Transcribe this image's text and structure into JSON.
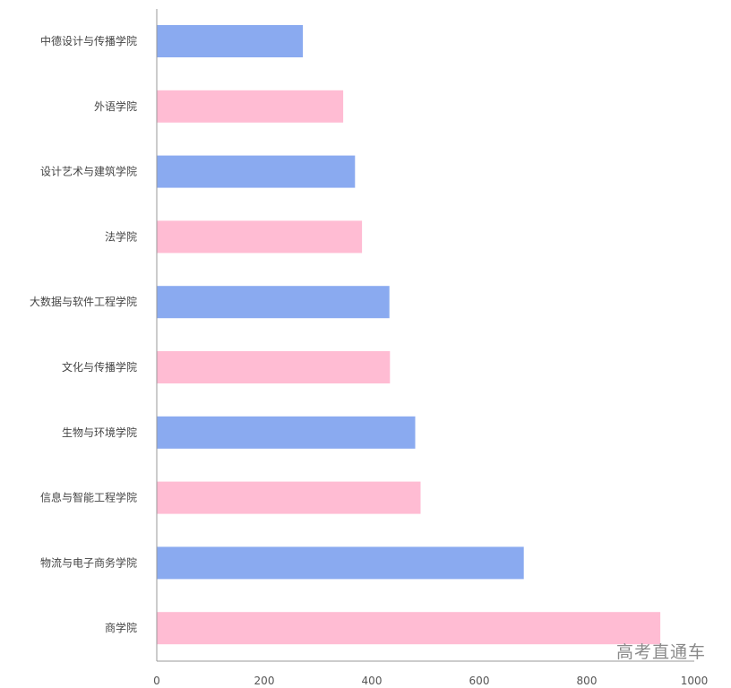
{
  "chart_data": {
    "type": "bar",
    "orientation": "horizontal",
    "categories": [
      "中德设计与传播学院",
      "外语学院",
      "设计艺术与建筑学院",
      "法学院",
      "大数据与软件工程学院",
      "文化与传播学院",
      "生物与环境学院",
      "信息与智能工程学院",
      "物流与电子商务学院",
      "商学院"
    ],
    "values": [
      271,
      346,
      368,
      381,
      432,
      433,
      480,
      490,
      682,
      936
    ],
    "xlim": [
      0,
      1000
    ],
    "xticks": [
      0,
      200,
      400,
      600,
      800,
      1000
    ],
    "title": "",
    "xlabel": "",
    "ylabel": "",
    "grid": false,
    "colors": [
      "#8aaaf0",
      "#ffbcd3"
    ]
  },
  "watermark": "高考直通车"
}
